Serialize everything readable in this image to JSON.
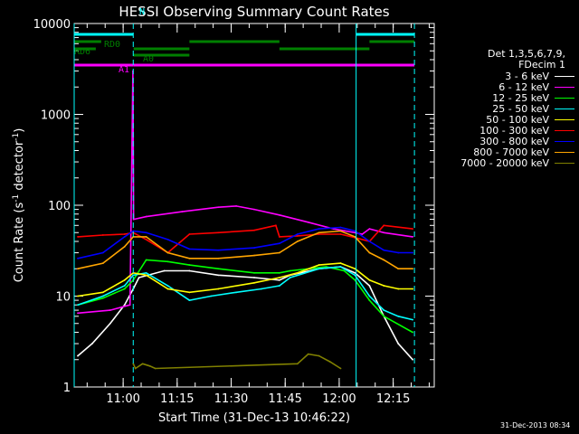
{
  "chart_data": {
    "type": "line",
    "title": "HESSI Observing Summary Count Rates",
    "xlabel": "Start Time (31-Dec-13 10:46:22)",
    "ylabel": "Count Rate (s",
    "ylabel_sup": "-1",
    "ylabel_mid": " detector",
    "ylabel_tail": ")",
    "yscale": "log",
    "ylim": [
      1,
      10000
    ],
    "xlim_minutes": [
      0,
      100
    ],
    "x_tick_labels": [
      "11:00",
      "11:15",
      "11:30",
      "11:45",
      "12:00",
      "12:15"
    ],
    "x_tick_minutes": [
      13.6,
      28.6,
      43.6,
      58.6,
      73.6,
      88.6
    ],
    "y_tick_labels": [
      "1",
      "10",
      "100",
      "1000",
      "10000"
    ],
    "y_tick_values": [
      1,
      10,
      100,
      1000,
      10000
    ],
    "vlines_solid_minutes": [
      0,
      78.3
    ],
    "vlines_dashed_minutes": [
      16.4,
      94.5
    ],
    "flag_bars": [
      {
        "label": "N",
        "color": "#00ffff",
        "segments": [
          [
            0,
            16.4
          ],
          [
            78.3,
            94.5
          ]
        ]
      },
      {
        "label": "RD0",
        "color": "#007f00",
        "segments": [
          [
            0,
            7.5
          ],
          [
            32,
            57
          ],
          [
            82,
            94.5
          ]
        ]
      },
      {
        "label": "RD6",
        "color": "#007f00",
        "segments": [
          [
            0,
            6
          ],
          [
            16.5,
            32
          ],
          [
            57,
            82
          ]
        ]
      },
      {
        "label": "A0",
        "color": "#007f00",
        "segments": [
          [
            16.4,
            32
          ]
        ]
      },
      {
        "label": "A1",
        "color": "#ff00ff",
        "segments": [
          [
            0,
            16.4
          ],
          [
            16.4,
            94.5
          ]
        ]
      }
    ],
    "legend_header": [
      "Det 1,3,5,6,7,9,",
      "FDecim 1"
    ],
    "series": [
      {
        "name": "3 - 6 keV",
        "color": "#ffffff",
        "points": [
          [
            1,
            2.2
          ],
          [
            5,
            3.0
          ],
          [
            10,
            5.0
          ],
          [
            14,
            8
          ],
          [
            16.4,
            12
          ],
          [
            18,
            16
          ],
          [
            25,
            19
          ],
          [
            32,
            19
          ],
          [
            40,
            17
          ],
          [
            50,
            16
          ],
          [
            57,
            15
          ],
          [
            60,
            17
          ],
          [
            68,
            20
          ],
          [
            74,
            21
          ],
          [
            78,
            18
          ],
          [
            82,
            13
          ],
          [
            86,
            6
          ],
          [
            90,
            3
          ],
          [
            94,
            2
          ]
        ]
      },
      {
        "name": "6 - 12 keV",
        "color": "#ff00ff",
        "points": [
          [
            1,
            6.5
          ],
          [
            10,
            7
          ],
          [
            15.5,
            8
          ],
          [
            16.3,
            3000
          ],
          [
            16.5,
            70
          ],
          [
            20,
            75
          ],
          [
            30,
            85
          ],
          [
            40,
            95
          ],
          [
            45,
            98
          ],
          [
            50,
            90
          ],
          [
            57,
            78
          ],
          [
            65,
            65
          ],
          [
            72,
            55
          ],
          [
            78,
            50
          ],
          [
            80,
            48
          ],
          [
            82,
            55
          ],
          [
            86,
            50
          ],
          [
            94,
            45
          ]
        ]
      },
      {
        "name": "12 - 25 keV",
        "color": "#00ff00",
        "points": [
          [
            1,
            8
          ],
          [
            8,
            9.5
          ],
          [
            14,
            12
          ],
          [
            16.4,
            15
          ],
          [
            20,
            25
          ],
          [
            26,
            24
          ],
          [
            32,
            22
          ],
          [
            40,
            20
          ],
          [
            50,
            18
          ],
          [
            57,
            18
          ],
          [
            60,
            19
          ],
          [
            70,
            21
          ],
          [
            75,
            19
          ],
          [
            78,
            15
          ],
          [
            82,
            9
          ],
          [
            86,
            6
          ],
          [
            94,
            4
          ]
        ]
      },
      {
        "name": "25 - 50 keV",
        "color": "#00ffff",
        "points": [
          [
            1,
            8
          ],
          [
            8,
            10
          ],
          [
            14,
            13
          ],
          [
            16.4,
            17
          ],
          [
            20,
            18
          ],
          [
            26,
            13
          ],
          [
            32,
            9
          ],
          [
            38,
            10
          ],
          [
            45,
            11
          ],
          [
            52,
            12
          ],
          [
            57,
            13
          ],
          [
            60,
            16
          ],
          [
            68,
            20
          ],
          [
            74,
            21
          ],
          [
            78,
            17
          ],
          [
            82,
            10
          ],
          [
            86,
            7
          ],
          [
            90,
            6
          ],
          [
            94,
            5.5
          ]
        ]
      },
      {
        "name": "50 - 100 keV",
        "color": "#ffff00",
        "points": [
          [
            1,
            10
          ],
          [
            8,
            11
          ],
          [
            14,
            15
          ],
          [
            16.4,
            18
          ],
          [
            20,
            17
          ],
          [
            26,
            12
          ],
          [
            32,
            11
          ],
          [
            40,
            12
          ],
          [
            50,
            14
          ],
          [
            57,
            16
          ],
          [
            62,
            18
          ],
          [
            68,
            22
          ],
          [
            74,
            23
          ],
          [
            78,
            20
          ],
          [
            82,
            15
          ],
          [
            86,
            13
          ],
          [
            90,
            12
          ],
          [
            94,
            12
          ]
        ]
      },
      {
        "name": "100 - 300 keV",
        "color": "#ff0000",
        "points": [
          [
            1,
            45
          ],
          [
            8,
            47
          ],
          [
            14,
            48
          ],
          [
            16.4,
            50
          ],
          [
            20,
            42
          ],
          [
            26,
            30
          ],
          [
            32,
            48
          ],
          [
            40,
            50
          ],
          [
            50,
            53
          ],
          [
            56,
            60
          ],
          [
            57,
            45
          ],
          [
            62,
            46
          ],
          [
            68,
            48
          ],
          [
            74,
            48
          ],
          [
            78,
            44
          ],
          [
            82,
            40
          ],
          [
            86,
            60
          ],
          [
            94,
            55
          ]
        ]
      },
      {
        "name": "300 - 800 keV",
        "color": "#0000ff",
        "points": [
          [
            1,
            26
          ],
          [
            8,
            30
          ],
          [
            14,
            45
          ],
          [
            16.4,
            52
          ],
          [
            20,
            50
          ],
          [
            26,
            42
          ],
          [
            32,
            33
          ],
          [
            40,
            32
          ],
          [
            50,
            34
          ],
          [
            57,
            38
          ],
          [
            62,
            48
          ],
          [
            68,
            55
          ],
          [
            74,
            57
          ],
          [
            78,
            52
          ],
          [
            82,
            40
          ],
          [
            86,
            32
          ],
          [
            90,
            30
          ],
          [
            94,
            30
          ]
        ]
      },
      {
        "name": "800 - 7000 keV",
        "color": "#ffa500",
        "points": [
          [
            1,
            20
          ],
          [
            8,
            23
          ],
          [
            14,
            35
          ],
          [
            16.4,
            45
          ],
          [
            20,
            45
          ],
          [
            26,
            30
          ],
          [
            32,
            26
          ],
          [
            40,
            26
          ],
          [
            50,
            28
          ],
          [
            57,
            30
          ],
          [
            62,
            40
          ],
          [
            68,
            50
          ],
          [
            74,
            52
          ],
          [
            78,
            45
          ],
          [
            82,
            30
          ],
          [
            86,
            25
          ],
          [
            90,
            20
          ],
          [
            94,
            20
          ]
        ]
      },
      {
        "name": "7000 - 20000 keV",
        "color": "#808000",
        "points": [
          [
            16.4,
            1.8
          ],
          [
            17,
            1.6
          ],
          [
            19,
            1.8
          ],
          [
            21,
            1.7
          ],
          [
            22.5,
            1.6
          ],
          [
            62,
            1.8
          ],
          [
            65,
            2.3
          ],
          [
            68,
            2.2
          ],
          [
            71,
            1.9
          ],
          [
            74,
            1.6
          ]
        ]
      }
    ]
  },
  "stamp": "31-Dec-2013 08:34"
}
